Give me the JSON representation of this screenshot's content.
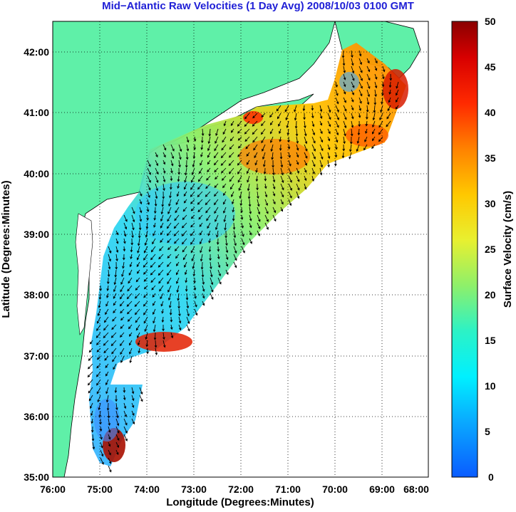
{
  "title": "Mid−Atlantic Raw Velocities (1 Day Avg) 2008/10/03 0100 GMT",
  "map": {
    "xlabel": "Longitude (Degrees:Minutes)",
    "ylabel": "Latitude (Degrees:Minutes)",
    "lon_ticks": [
      "76:00",
      "75:00",
      "74:00",
      "73:00",
      "72:00",
      "71:00",
      "70:00",
      "69:00",
      "68:00"
    ],
    "lat_ticks": [
      "42:00",
      "41:00",
      "40:00",
      "39:00",
      "38:00",
      "37:00",
      "36:00",
      "35:00"
    ],
    "lon_range": [
      -76,
      -68
    ],
    "lat_range": [
      35,
      42.5
    ],
    "grid": "dotted",
    "land_color": "#5ff0a8",
    "ocean_color": "#ffffff"
  },
  "colorbar": {
    "label": "Surface Velocity (cm/s)",
    "ticks": [
      "50",
      "45",
      "40",
      "35",
      "30",
      "25",
      "20",
      "15",
      "10",
      "5",
      "0"
    ],
    "range": [
      0,
      50
    ],
    "colormap": "jet"
  }
}
